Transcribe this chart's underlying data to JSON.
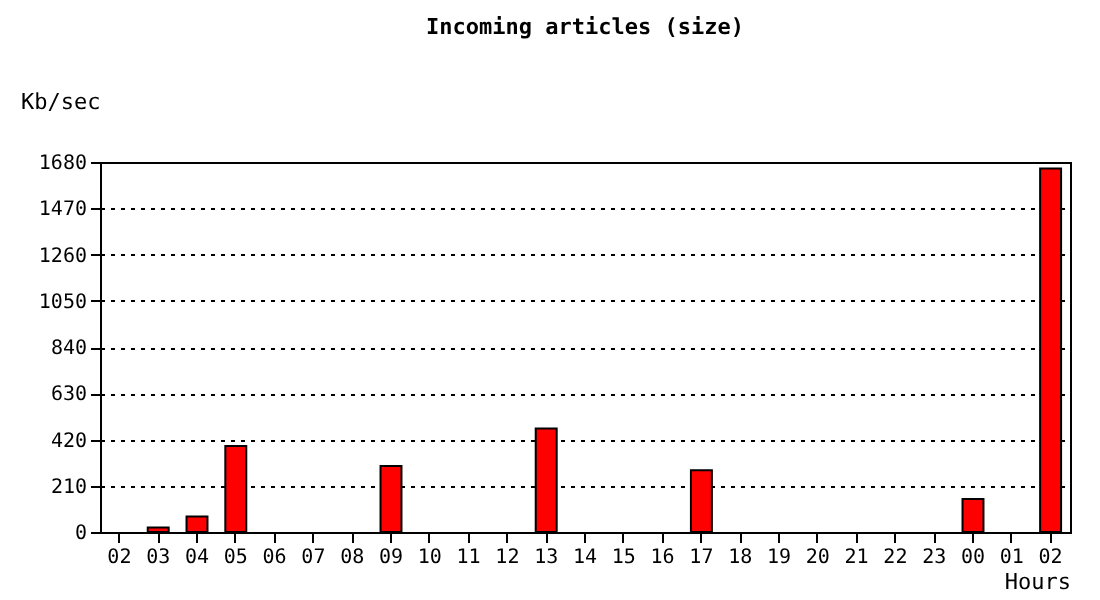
{
  "chart_data": {
    "type": "bar",
    "title": "Incoming articles (size)",
    "xlabel": "Hours",
    "ylabel": "Kb/sec",
    "categories": [
      "02",
      "03",
      "04",
      "05",
      "06",
      "07",
      "08",
      "09",
      "10",
      "11",
      "12",
      "13",
      "14",
      "15",
      "16",
      "17",
      "18",
      "19",
      "20",
      "21",
      "22",
      "23",
      "00",
      "01",
      "02"
    ],
    "values": [
      0,
      20,
      70,
      390,
      0,
      0,
      0,
      300,
      0,
      0,
      0,
      470,
      0,
      0,
      0,
      280,
      0,
      0,
      0,
      0,
      0,
      0,
      150,
      0,
      1650
    ],
    "color": "#ff0000",
    "ylim": [
      0,
      1680
    ],
    "yticks": [
      0,
      210,
      420,
      630,
      840,
      1050,
      1260,
      1470,
      1680
    ],
    "grid": "y"
  }
}
